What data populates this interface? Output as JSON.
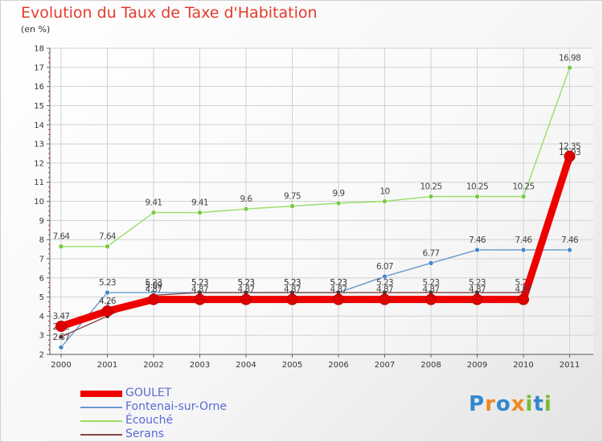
{
  "chart_data": {
    "type": "line",
    "title": "Evolution du Taux de Taxe d'Habitation",
    "subtitle": "(en %)",
    "x": [
      "2000",
      "2001",
      "2002",
      "2003",
      "2004",
      "2005",
      "2006",
      "2007",
      "2008",
      "2009",
      "2010",
      "2011"
    ],
    "ylim": [
      2,
      18
    ],
    "yticks": [
      2,
      3,
      4,
      5,
      6,
      7,
      8,
      9,
      10,
      11,
      12,
      13,
      14,
      15,
      16,
      17,
      18
    ],
    "grid": true,
    "legend_position": "bottom-left",
    "series": [
      {
        "name": "Écouché",
        "color": "#99dd66",
        "marker": "#77cc44",
        "values": [
          7.64,
          7.64,
          9.41,
          9.41,
          9.6,
          9.75,
          9.9,
          10,
          10.25,
          10.25,
          10.25,
          16.98
        ],
        "labels": [
          "7.64",
          "7.64",
          "9.41",
          "9.41",
          "9.6",
          "9.75",
          "9.9",
          "10",
          "10.25",
          "10.25",
          "10.25",
          "16.98"
        ]
      },
      {
        "name": "Fontenai-sur-Orne",
        "color": "#6699cc",
        "marker": "#4488cc",
        "values": [
          2.37,
          5.23,
          5.23,
          5.23,
          5.23,
          5.23,
          5.23,
          6.07,
          6.77,
          7.46,
          7.46,
          7.46
        ],
        "labels": [
          "2.37",
          "5.23",
          "5.23",
          "5.23",
          "5.23",
          "5.23",
          "5.23",
          "6.07",
          "6.77",
          "7.46",
          "7.46",
          "7.46"
        ]
      },
      {
        "name": "Serans",
        "color": "#884444",
        "marker": "#553333",
        "values": [
          2.92,
          4.0,
          5.09,
          5.23,
          5.23,
          5.23,
          5.23,
          5.23,
          5.23,
          5.23,
          5.23,
          12.03
        ],
        "labels": [
          "2.92",
          "4",
          "5.09",
          "5.23",
          "5.23",
          "5.23",
          "5.23",
          "5.23",
          "5.23",
          "5.23",
          "5.23",
          "12.03"
        ]
      },
      {
        "name": "GOULET",
        "color": "#ee0000",
        "marker": "#dd0000",
        "values": [
          3.47,
          4.26,
          4.87,
          4.87,
          4.87,
          4.87,
          4.87,
          4.87,
          4.87,
          4.87,
          4.87,
          12.35
        ],
        "labels": [
          "3.47",
          "4.26",
          "4.87",
          "4.87",
          "4.87",
          "4.87",
          "4.87",
          "4.87",
          "4.87",
          "4.87",
          "4.87",
          "12.35"
        ]
      }
    ]
  },
  "legend": {
    "items": [
      {
        "label": "GOULET",
        "color": "#ee0000"
      },
      {
        "label": "Fontenai-sur-Orne",
        "color": "#6699cc"
      },
      {
        "label": "Écouché",
        "color": "#99dd66"
      },
      {
        "label": "Serans",
        "color": "#884444"
      }
    ]
  },
  "logo": {
    "letters": [
      "P",
      "r",
      "o",
      "x",
      "i",
      "t",
      "i"
    ],
    "colors": [
      "#3388cc",
      "#ee8822",
      "#3388cc",
      "#ee8822",
      "#77bb33",
      "#3388cc",
      "#77bb33"
    ]
  }
}
